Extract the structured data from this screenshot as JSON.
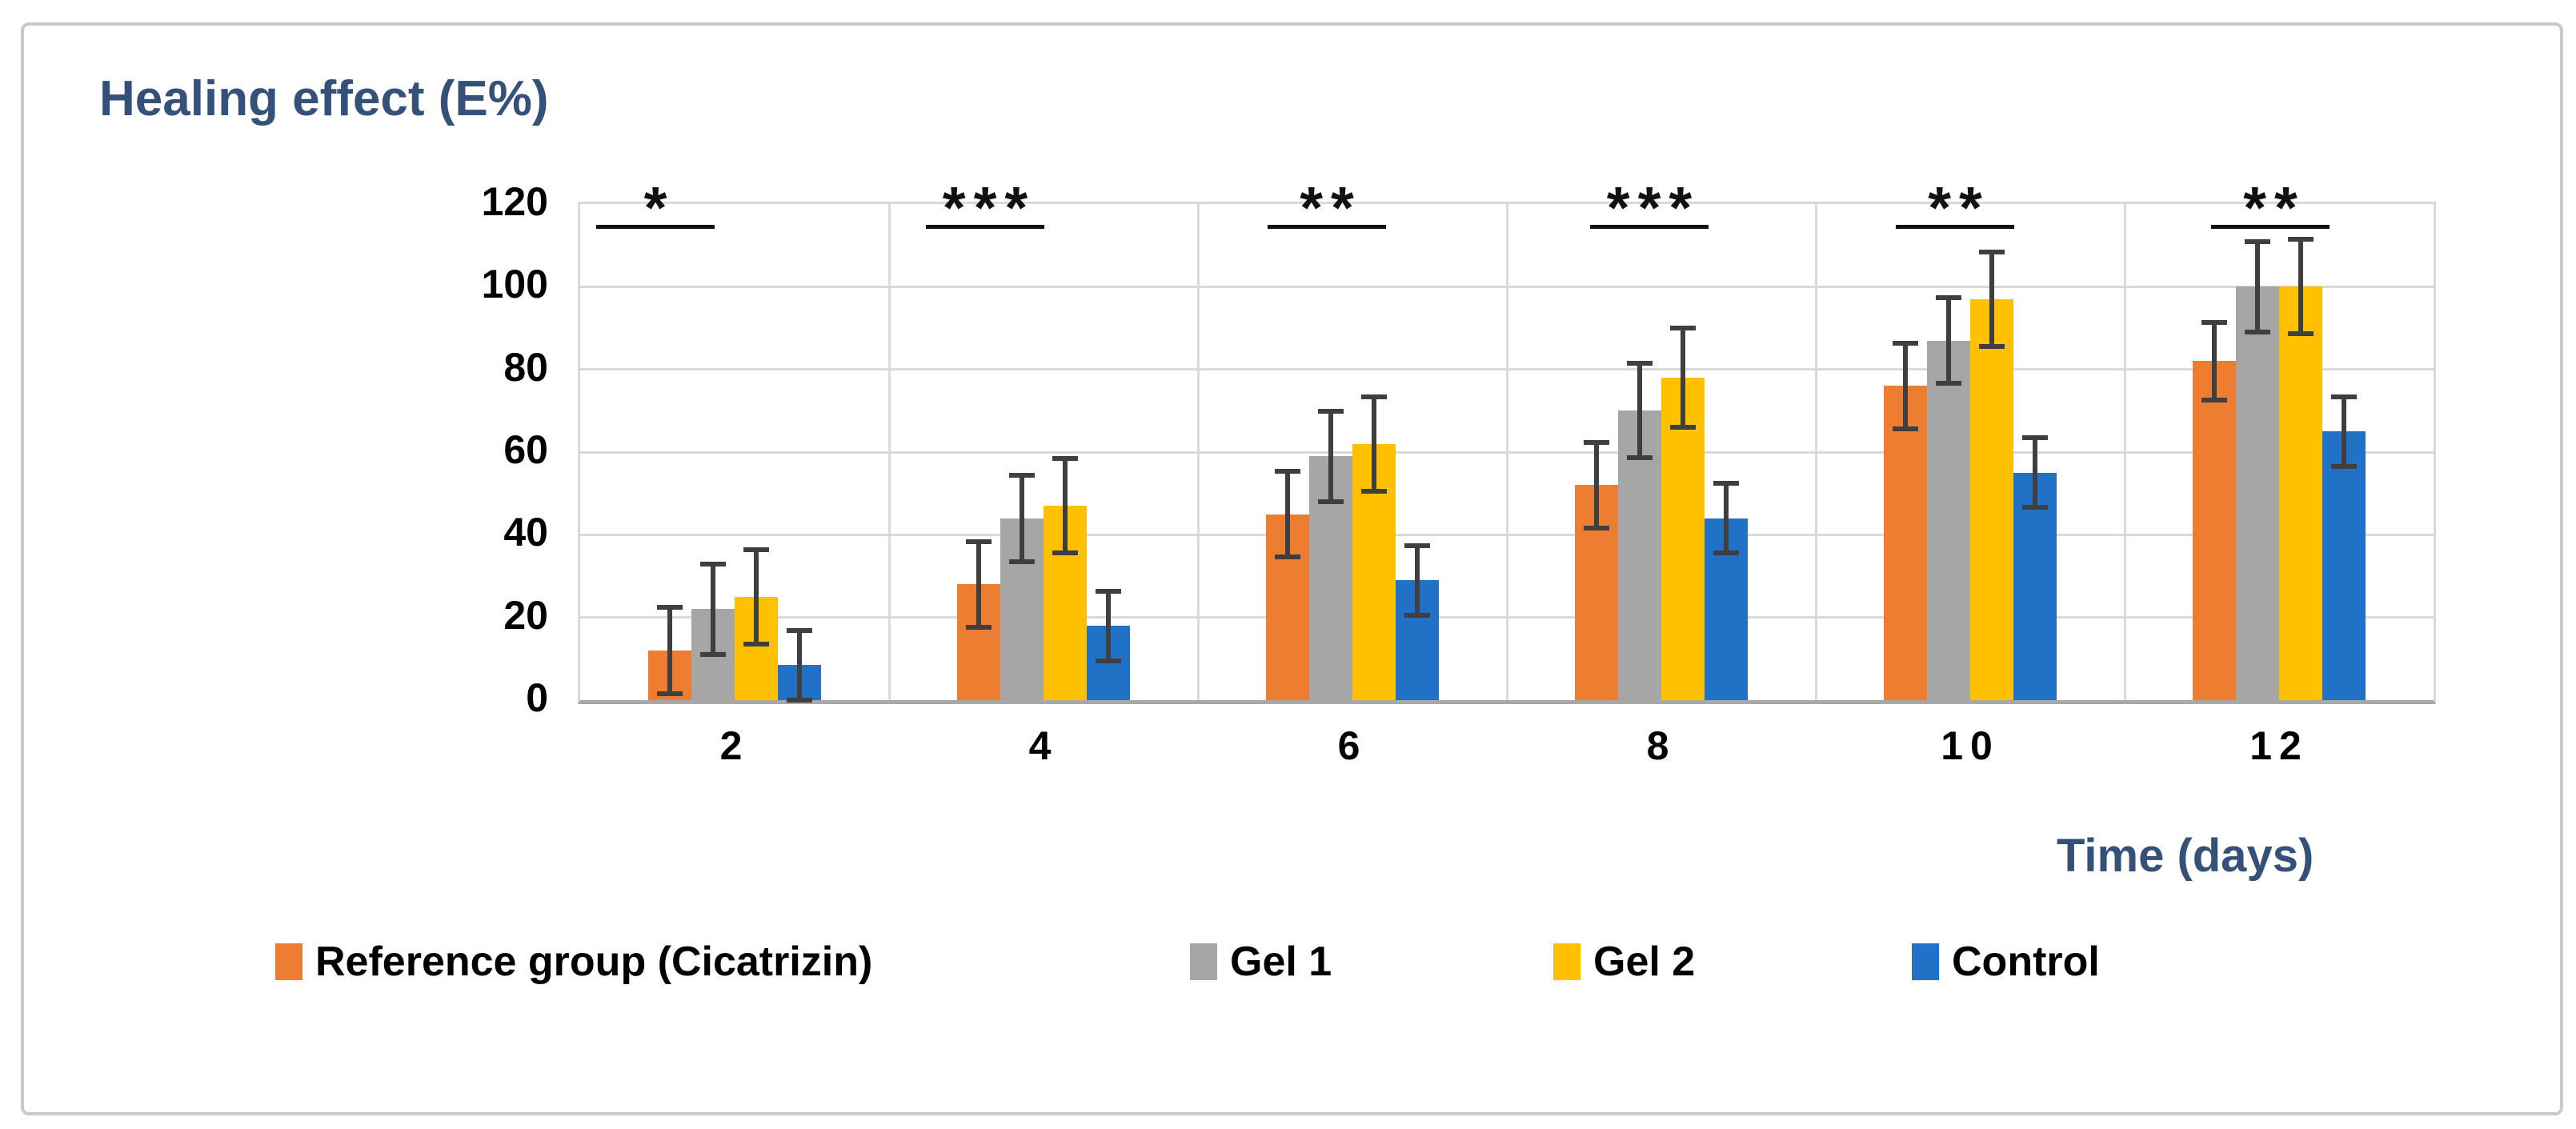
{
  "figure_title": "Healing effect (E%)",
  "chart_data": {
    "type": "bar",
    "title": "Healing effect (E%)",
    "xlabel": "Time (days)",
    "ylabel": "",
    "categories": [
      "2",
      "4",
      "6",
      "8",
      "10",
      "12"
    ],
    "y_ticks": [
      120,
      100,
      80,
      60,
      40,
      20,
      0
    ],
    "ylim": [
      0,
      120
    ],
    "grid": "horizontal gridlines every 20 + vertical category separators",
    "legend_position": "bottom",
    "error_bars": true,
    "series": [
      {
        "name": "Reference group (Cicatrizin)",
        "color": "#ED7D31",
        "values": [
          12,
          28,
          45,
          52,
          76,
          82
        ],
        "errors": [
          11,
          11,
          11,
          11,
          11,
          10
        ]
      },
      {
        "name": "Gel 1",
        "color": "#A6A6A6",
        "values": [
          22,
          44,
          59,
          70,
          87,
          100
        ],
        "errors": [
          11.5,
          11,
          11.5,
          12,
          11,
          11.5
        ]
      },
      {
        "name": "Gel 2",
        "color": "#FFC000",
        "values": [
          25,
          47,
          62,
          78,
          97,
          100
        ],
        "errors": [
          12,
          12,
          12,
          12.5,
          12,
          12
        ]
      },
      {
        "name": "Control",
        "color": "#2171C7",
        "values": [
          8.5,
          18,
          29,
          44,
          55,
          65
        ],
        "errors": [
          9,
          9,
          9,
          9,
          9,
          9
        ]
      }
    ],
    "significance_markers": [
      "*",
      "***",
      "**",
      "***",
      "**",
      "**"
    ],
    "colors": {
      "title_text": "#35517A",
      "axis_title_text": "#35517A",
      "tick_text": "#000000",
      "gridline": "#D9D9D9",
      "axis_line": "#A8A8A8",
      "error_bar": "#3F3F3F",
      "significance": "#111111",
      "figure_border": "#C9C9C9"
    }
  }
}
